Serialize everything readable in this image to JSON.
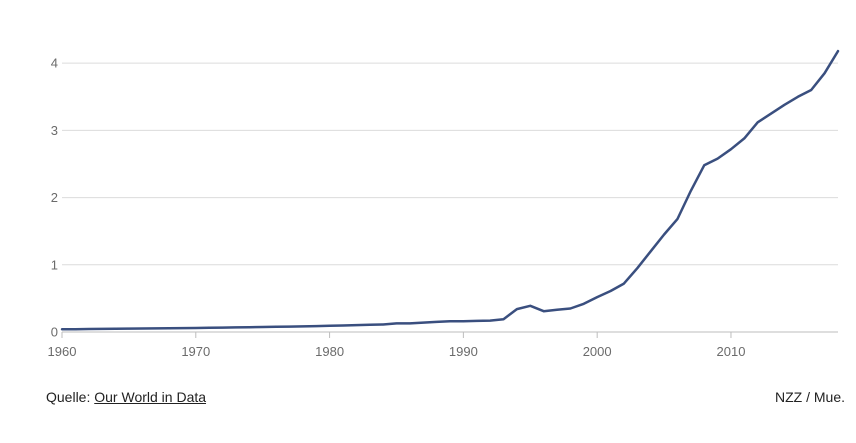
{
  "chart_data": {
    "type": "line",
    "title": "",
    "xlabel": "",
    "ylabel": "",
    "xlim": [
      1960,
      2018
    ],
    "ylim": [
      0,
      4.3
    ],
    "grid": true,
    "x_ticks": [
      "1960",
      "1970",
      "1980",
      "1990",
      "2000",
      "2010"
    ],
    "y_ticks": [
      "0",
      "1",
      "2",
      "3",
      "4"
    ],
    "line_color": "#3a4f7f",
    "grid_color": "#dcdcdc",
    "series": [
      {
        "x": [
          1960,
          1961,
          1962,
          1963,
          1964,
          1965,
          1966,
          1967,
          1968,
          1969,
          1970,
          1971,
          1972,
          1973,
          1974,
          1975,
          1976,
          1977,
          1978,
          1979,
          1980,
          1981,
          1982,
          1983,
          1984,
          1985,
          1986,
          1987,
          1988,
          1989,
          1990,
          1991,
          1992,
          1993,
          1994,
          1995,
          1996,
          1997,
          1998,
          1999,
          2000,
          2001,
          2002,
          2003,
          2004,
          2005,
          2006,
          2007,
          2008,
          2009,
          2010,
          2011,
          2012,
          2013,
          2014,
          2015,
          2016,
          2017,
          2018
        ],
        "y": [
          0.04,
          0.042,
          0.044,
          0.046,
          0.048,
          0.05,
          0.052,
          0.054,
          0.056,
          0.058,
          0.06,
          0.063,
          0.066,
          0.069,
          0.072,
          0.075,
          0.078,
          0.081,
          0.084,
          0.088,
          0.092,
          0.097,
          0.102,
          0.107,
          0.112,
          0.128,
          0.128,
          0.14,
          0.15,
          0.16,
          0.16,
          0.165,
          0.17,
          0.19,
          0.34,
          0.39,
          0.31,
          0.33,
          0.35,
          0.42,
          0.52,
          0.61,
          0.72,
          0.95,
          1.2,
          1.45,
          1.68,
          2.1,
          2.48,
          2.58,
          2.72,
          2.88,
          3.12,
          3.25,
          3.38,
          3.5,
          3.6,
          3.85,
          4.18
        ]
      }
    ]
  },
  "footer": {
    "source_prefix": "Quelle: ",
    "source_link": "Our World in Data",
    "credit": "NZZ / Mue."
  }
}
